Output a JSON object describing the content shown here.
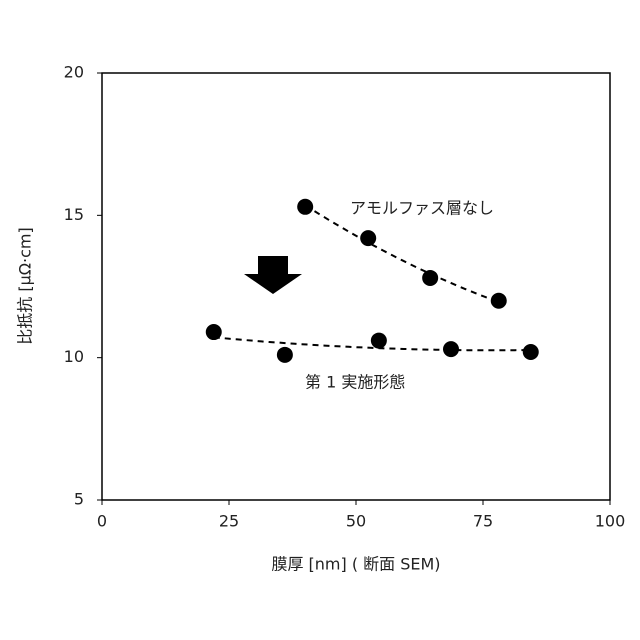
{
  "chart_data": {
    "type": "scatter",
    "xlabel": "膜厚 [nm] ( 断面 SEM)",
    "ylabel": "比抵抗 [μΩ·cm]",
    "xlim": [
      0,
      100
    ],
    "xticks": [
      0,
      25,
      50,
      75,
      100
    ],
    "ylim": [
      5,
      20
    ],
    "yticks": [
      5,
      10,
      15,
      20
    ],
    "trendline": true,
    "series": [
      {
        "name": "アモルファス層なし",
        "color": "#000000",
        "x": [
          40,
          52.4,
          64.6,
          78.1
        ],
        "values": [
          15.3,
          14.2,
          12.8,
          12.0
        ]
      },
      {
        "name": "第 1 実施形態",
        "color": "#000000",
        "x": [
          22,
          36,
          54.5,
          68.7,
          84.4
        ],
        "values": [
          10.9,
          10.1,
          10.6,
          10.3,
          10.2
        ]
      }
    ]
  }
}
